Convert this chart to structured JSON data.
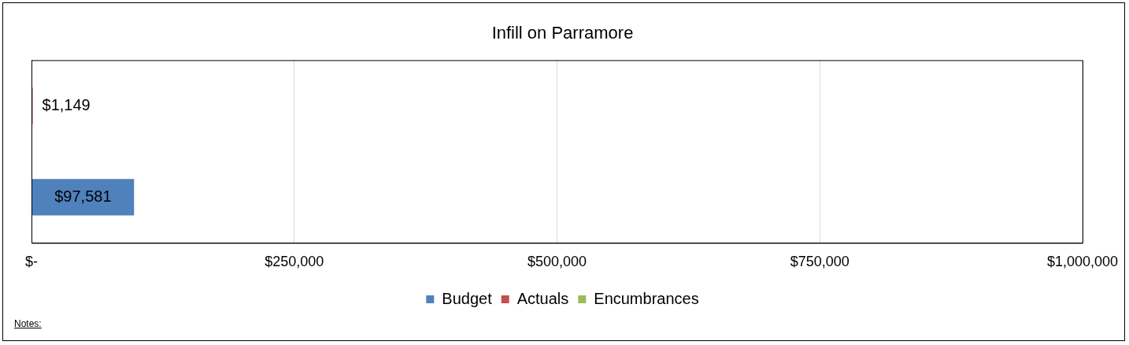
{
  "chart_data": {
    "type": "bar",
    "orientation": "horizontal",
    "stacked": true,
    "title": "Infill on Parramore",
    "categories": [
      null,
      null
    ],
    "series": [
      {
        "name": "Budget",
        "color": "#4f81bd",
        "values": [
          null,
          97581
        ],
        "value_labels": [
          null,
          "$97,581"
        ]
      },
      {
        "name": "Actuals",
        "color": "#c0504d",
        "values": [
          1149,
          null
        ],
        "value_labels": [
          "$1,149",
          null
        ]
      },
      {
        "name": "Encumbrances",
        "color": "#9bbb59",
        "values": [
          0,
          null
        ]
      }
    ],
    "xlim": [
      0,
      1000000
    ],
    "xticks": [
      {
        "value": 0,
        "label": "$-"
      },
      {
        "value": 250000,
        "label": "$250,000"
      },
      {
        "value": 500000,
        "label": "$500,000"
      },
      {
        "value": 750000,
        "label": "$750,000"
      },
      {
        "value": 1000000,
        "label": "$1,000,000"
      }
    ],
    "grid": "x",
    "legend": "bottom",
    "annotations": [
      "Notes:"
    ]
  }
}
